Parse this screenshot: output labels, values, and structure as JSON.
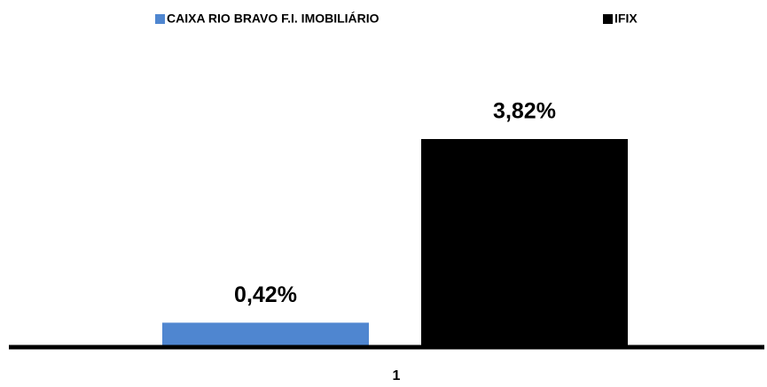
{
  "chart_data": {
    "type": "bar",
    "categories": [
      "1"
    ],
    "series": [
      {
        "name": "CAIXA RIO BRAVO F.I. IMOBILIÁRIO",
        "color": "#4f86d0",
        "values": [
          0.42
        ],
        "value_labels": [
          "0,42%"
        ]
      },
      {
        "name": "IFIX",
        "color": "#000000",
        "values": [
          3.82
        ],
        "value_labels": [
          "3,82%"
        ]
      }
    ]
  }
}
